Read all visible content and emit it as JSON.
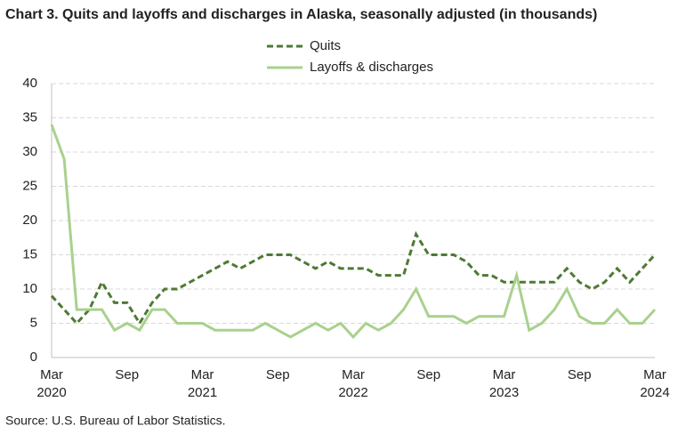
{
  "chart_data": {
    "type": "line",
    "title": "Chart 3. Quits and layoffs and discharges in Alaska, seasonally adjusted (in thousands)",
    "source": "Source: U.S. Bureau of Labor Statistics.",
    "categories": [
      "Mar",
      null,
      null,
      null,
      null,
      null,
      "Sep",
      null,
      null,
      null,
      null,
      null,
      "Mar",
      null,
      null,
      null,
      null,
      null,
      "Sep",
      null,
      null,
      null,
      null,
      null,
      "Mar",
      null,
      null,
      null,
      null,
      null,
      "Sep",
      null,
      null,
      null,
      null,
      null,
      "Mar",
      null,
      null,
      null,
      null,
      null,
      "Sep",
      null,
      null,
      null,
      null,
      null,
      "Mar"
    ],
    "years": [
      "2020",
      "2021",
      "2022",
      "2023",
      "2024"
    ],
    "series": [
      {
        "name": "Quits",
        "color": "#4e7a34",
        "dashed": true,
        "values": [
          9,
          7,
          5,
          7,
          11,
          8,
          8,
          5,
          8,
          10,
          10,
          11,
          12,
          13,
          14,
          13,
          14,
          15,
          15,
          15,
          14,
          13,
          14,
          13,
          13,
          13,
          12,
          12,
          12,
          18,
          15,
          15,
          15,
          14,
          12,
          12,
          11,
          11,
          11,
          11,
          11,
          13,
          11,
          10,
          11,
          13,
          11,
          13,
          15
        ]
      },
      {
        "name": "Layoffs & discharges",
        "color": "#a9d18e",
        "dashed": false,
        "values": [
          34,
          29,
          7,
          7,
          7,
          4,
          5,
          4,
          7,
          7,
          5,
          5,
          5,
          4,
          4,
          4,
          4,
          5,
          4,
          3,
          4,
          5,
          4,
          5,
          3,
          5,
          4,
          5,
          7,
          10,
          6,
          6,
          6,
          5,
          6,
          6,
          6,
          12,
          4,
          5,
          7,
          10,
          6,
          5,
          5,
          7,
          5,
          5,
          7
        ]
      }
    ],
    "ylim": [
      0,
      40
    ],
    "yticks": [
      0,
      5,
      10,
      15,
      20,
      25,
      30,
      35,
      40
    ],
    "grid": true
  }
}
